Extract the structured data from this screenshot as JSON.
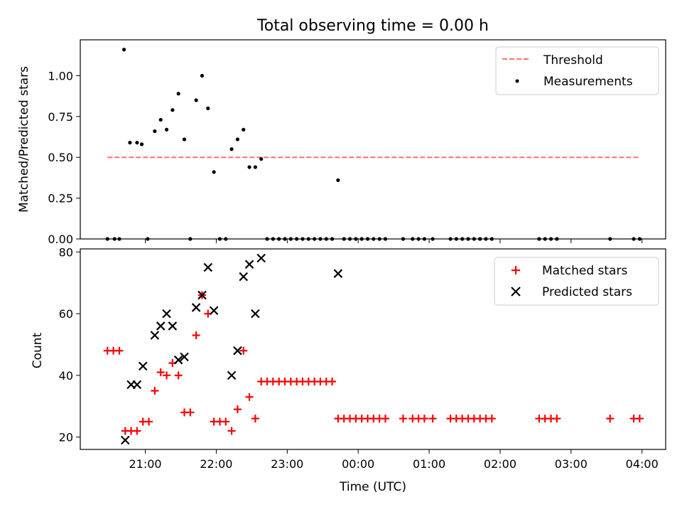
{
  "chart_data": [
    {
      "type": "scatter",
      "title": "Total observing time = 0.00 h",
      "xlabel": "",
      "ylabel": "Matched/Predicted stars",
      "x_unit": "time (UTC)",
      "xlim": [
        "20:05",
        "04:20"
      ],
      "ylim": [
        0,
        1.22
      ],
      "yticks": [
        "0.00",
        "0.25",
        "0.50",
        "0.75",
        "1.00"
      ],
      "ytick_values": [
        0,
        0.25,
        0.5,
        0.75,
        1.0
      ],
      "grid": false,
      "legend_position": "top-right",
      "threshold": {
        "name": "Threshold",
        "value": 0.5,
        "x_start": "20:28",
        "x_end": "03:58",
        "color": "#ff7070"
      },
      "series": [
        {
          "name": "Measurements",
          "color": "#000000",
          "points": [
            [
              "20:28",
              0
            ],
            [
              "20:34",
              0
            ],
            [
              "20:38",
              0
            ],
            [
              "20:42",
              1.16
            ],
            [
              "20:47",
              0.59
            ],
            [
              "20:53",
              0.59
            ],
            [
              "20:57",
              0.58
            ],
            [
              "21:02",
              0
            ],
            [
              "21:08",
              0.66
            ],
            [
              "21:13",
              0.73
            ],
            [
              "21:18",
              0.67
            ],
            [
              "21:23",
              0.79
            ],
            [
              "21:28",
              0.89
            ],
            [
              "21:33",
              0.61
            ],
            [
              "21:38",
              0
            ],
            [
              "21:43",
              0.85
            ],
            [
              "21:48",
              1.0
            ],
            [
              "21:53",
              0.8
            ],
            [
              "21:58",
              0.41
            ],
            [
              "22:03",
              0
            ],
            [
              "22:08",
              0
            ],
            [
              "22:13",
              0.55
            ],
            [
              "22:18",
              0.61
            ],
            [
              "22:23",
              0.67
            ],
            [
              "22:28",
              0.44
            ],
            [
              "22:33",
              0.44
            ],
            [
              "22:38",
              0.49
            ],
            [
              "22:43",
              0
            ],
            [
              "22:48",
              0
            ],
            [
              "22:53",
              0
            ],
            [
              "22:58",
              0
            ],
            [
              "23:03",
              0
            ],
            [
              "23:08",
              0
            ],
            [
              "23:13",
              0
            ],
            [
              "23:18",
              0
            ],
            [
              "23:23",
              0
            ],
            [
              "23:28",
              0
            ],
            [
              "23:33",
              0
            ],
            [
              "23:38",
              0
            ],
            [
              "23:43",
              0.36
            ],
            [
              "23:48",
              0
            ],
            [
              "23:53",
              0
            ],
            [
              "23:58",
              0
            ],
            [
              "00:03",
              0
            ],
            [
              "00:08",
              0
            ],
            [
              "00:13",
              0
            ],
            [
              "00:18",
              0
            ],
            [
              "00:23",
              0
            ],
            [
              "00:38",
              0
            ],
            [
              "00:46",
              0
            ],
            [
              "00:51",
              0
            ],
            [
              "00:56",
              0
            ],
            [
              "01:03",
              0
            ],
            [
              "01:18",
              0
            ],
            [
              "01:23",
              0
            ],
            [
              "01:28",
              0
            ],
            [
              "01:33",
              0
            ],
            [
              "01:38",
              0
            ],
            [
              "01:43",
              0
            ],
            [
              "01:48",
              0
            ],
            [
              "01:53",
              0
            ],
            [
              "02:33",
              0
            ],
            [
              "02:38",
              0
            ],
            [
              "02:43",
              0
            ],
            [
              "02:48",
              0
            ],
            [
              "03:33",
              0
            ],
            [
              "03:53",
              0
            ],
            [
              "03:58",
              0
            ]
          ]
        }
      ]
    },
    {
      "type": "scatter",
      "title": "",
      "xlabel": "Time (UTC)",
      "ylabel": "Count",
      "xlim": [
        "20:05",
        "04:20"
      ],
      "ylim": [
        16,
        81
      ],
      "yticks": [
        "20",
        "40",
        "60",
        "80"
      ],
      "ytick_values": [
        20,
        40,
        60,
        80
      ],
      "xticks": [
        "21:00",
        "22:00",
        "23:00",
        "00:00",
        "01:00",
        "02:00",
        "03:00",
        "04:00"
      ],
      "grid": false,
      "legend_position": "top-right",
      "series": [
        {
          "name": "Matched stars",
          "marker": "+",
          "color": "#ff0000",
          "points": [
            [
              "20:28",
              48
            ],
            [
              "20:33",
              48
            ],
            [
              "20:38",
              48
            ],
            [
              "20:43",
              22
            ],
            [
              "20:48",
              22
            ],
            [
              "20:53",
              22
            ],
            [
              "20:58",
              25
            ],
            [
              "21:03",
              25
            ],
            [
              "21:08",
              35
            ],
            [
              "21:13",
              41
            ],
            [
              "21:18",
              40
            ],
            [
              "21:23",
              44
            ],
            [
              "21:28",
              40
            ],
            [
              "21:33",
              28
            ],
            [
              "21:38",
              28
            ],
            [
              "21:43",
              53
            ],
            [
              "21:48",
              66
            ],
            [
              "21:53",
              60
            ],
            [
              "21:58",
              25
            ],
            [
              "22:03",
              25
            ],
            [
              "22:08",
              25
            ],
            [
              "22:13",
              22
            ],
            [
              "22:18",
              29
            ],
            [
              "22:23",
              48
            ],
            [
              "22:28",
              33
            ],
            [
              "22:33",
              26
            ],
            [
              "22:38",
              38
            ],
            [
              "22:43",
              38
            ],
            [
              "22:48",
              38
            ],
            [
              "22:53",
              38
            ],
            [
              "22:58",
              38
            ],
            [
              "23:03",
              38
            ],
            [
              "23:08",
              38
            ],
            [
              "23:13",
              38
            ],
            [
              "23:18",
              38
            ],
            [
              "23:23",
              38
            ],
            [
              "23:28",
              38
            ],
            [
              "23:33",
              38
            ],
            [
              "23:38",
              38
            ],
            [
              "23:43",
              26
            ],
            [
              "23:48",
              26
            ],
            [
              "23:53",
              26
            ],
            [
              "23:58",
              26
            ],
            [
              "00:03",
              26
            ],
            [
              "00:08",
              26
            ],
            [
              "00:13",
              26
            ],
            [
              "00:18",
              26
            ],
            [
              "00:23",
              26
            ],
            [
              "00:38",
              26
            ],
            [
              "00:46",
              26
            ],
            [
              "00:51",
              26
            ],
            [
              "00:56",
              26
            ],
            [
              "01:03",
              26
            ],
            [
              "01:18",
              26
            ],
            [
              "01:23",
              26
            ],
            [
              "01:28",
              26
            ],
            [
              "01:33",
              26
            ],
            [
              "01:38",
              26
            ],
            [
              "01:43",
              26
            ],
            [
              "01:48",
              26
            ],
            [
              "01:53",
              26
            ],
            [
              "02:33",
              26
            ],
            [
              "02:38",
              26
            ],
            [
              "02:43",
              26
            ],
            [
              "02:48",
              26
            ],
            [
              "03:33",
              26
            ],
            [
              "03:53",
              26
            ],
            [
              "03:58",
              26
            ]
          ]
        },
        {
          "name": "Predicted stars",
          "marker": "x",
          "color": "#000000",
          "points": [
            [
              "20:43",
              19
            ],
            [
              "20:48",
              37
            ],
            [
              "20:53",
              37
            ],
            [
              "20:58",
              43
            ],
            [
              "21:08",
              53
            ],
            [
              "21:13",
              56
            ],
            [
              "21:18",
              60
            ],
            [
              "21:23",
              56
            ],
            [
              "21:28",
              45
            ],
            [
              "21:33",
              46
            ],
            [
              "21:43",
              62
            ],
            [
              "21:48",
              66
            ],
            [
              "21:53",
              75
            ],
            [
              "21:58",
              61
            ],
            [
              "22:13",
              40
            ],
            [
              "22:18",
              48
            ],
            [
              "22:23",
              72
            ],
            [
              "22:28",
              76
            ],
            [
              "22:33",
              60
            ],
            [
              "22:38",
              78
            ],
            [
              "23:43",
              73
            ]
          ]
        }
      ]
    }
  ]
}
